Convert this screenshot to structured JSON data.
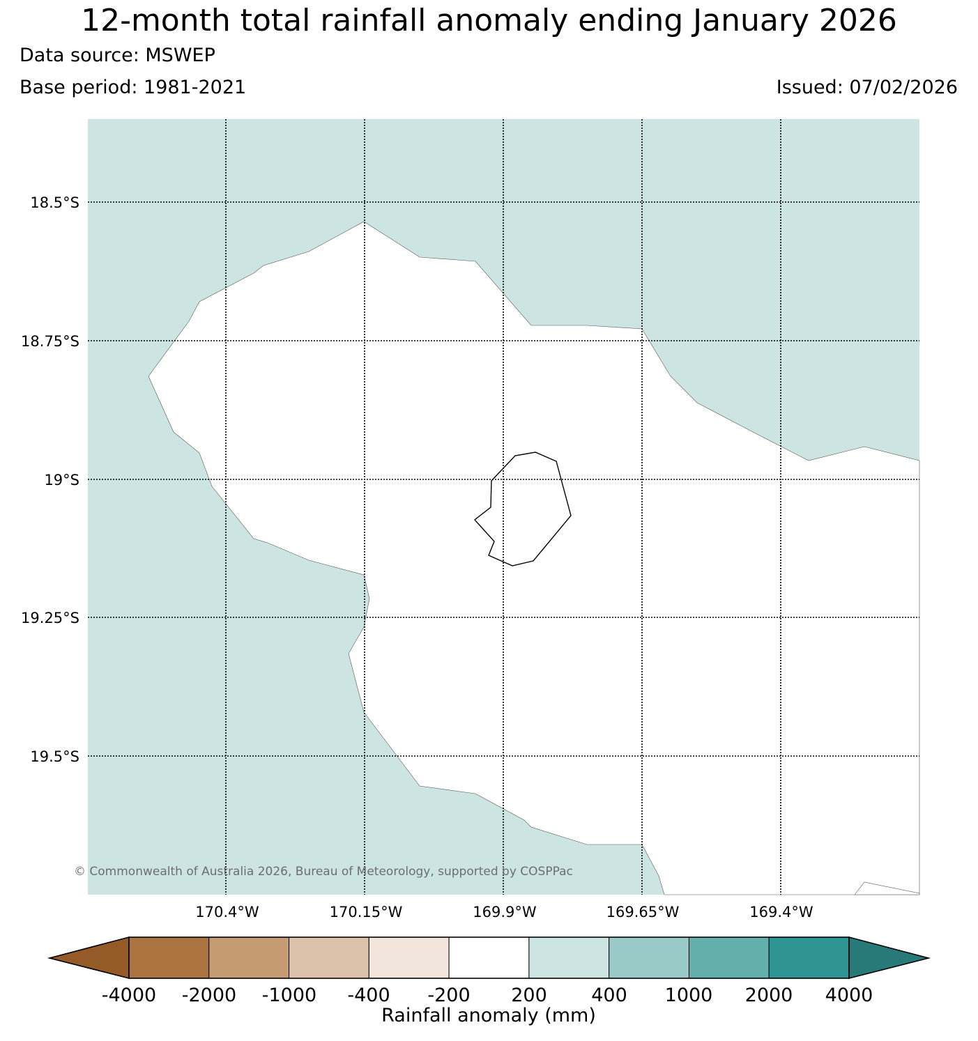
{
  "header": {
    "title": "12-month total rainfall anomaly ending January 2026",
    "data_source": "Data source: MSWEP",
    "base_period": "Base period: 1981-2021",
    "issued": "Issued: 07/02/2026"
  },
  "map": {
    "latitude_labels": [
      "18.5°S",
      "18.75°S",
      "19°S",
      "19.25°S",
      "19.5°S"
    ],
    "longitude_labels": [
      "170.4°W",
      "170.15°W",
      "169.9°W",
      "169.65°W",
      "169.4°W"
    ],
    "copyright": "© Commonwealth of Australia 2026, Bureau of Meteorology, supported by COSPPac",
    "colors": {
      "ocean_fill": "#cce5e3",
      "land_fill": "#ffffff",
      "gridline": "#000000"
    }
  },
  "colorbar": {
    "title": "Rainfall anomaly (mm)",
    "tick_labels": [
      "-4000",
      "-2000",
      "-1000",
      "-400",
      "-200",
      "200",
      "400",
      "1000",
      "2000",
      "4000"
    ],
    "bin_colors": [
      "#ab7340",
      "#c49b73",
      "#dcc2aa",
      "#f2e6dc",
      "#ffffff",
      "#cce5e3",
      "#99cac8",
      "#62afac",
      "#2e9592"
    ],
    "under_color": "#945a28",
    "over_color": "#277a78"
  }
}
